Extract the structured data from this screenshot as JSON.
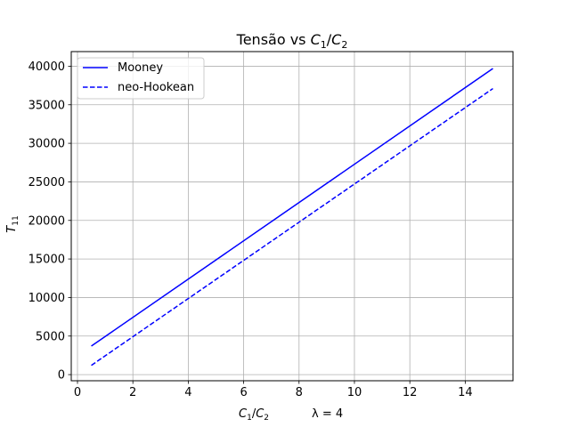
{
  "chart_data": {
    "type": "line",
    "title": {
      "prefix": "Tensão vs ",
      "math": {
        "a": "C",
        "a_sub": "1",
        "slash": "/",
        "b": "C",
        "b_sub": "2"
      }
    },
    "xlabel": {
      "math": {
        "a": "C",
        "a_sub": "1",
        "slash": "/",
        "b": "C",
        "b_sub": "2"
      },
      "suffix": "λ = 4"
    },
    "ylabel": {
      "base": "T",
      "sub": "11"
    },
    "xlim": [
      -0.225,
      15.725
    ],
    "ylim": [
      -795,
      41895
    ],
    "xticks": [
      0,
      2,
      4,
      6,
      8,
      10,
      12,
      14
    ],
    "xtick_labels": [
      "0",
      "2",
      "4",
      "6",
      "8",
      "10",
      "12",
      "14"
    ],
    "yticks": [
      0,
      5000,
      10000,
      15000,
      20000,
      25000,
      30000,
      35000,
      40000
    ],
    "ytick_labels": [
      "0",
      "5000",
      "10000",
      "15000",
      "20000",
      "25000",
      "30000",
      "35000",
      "40000"
    ],
    "grid": true,
    "legend_position": "upper left",
    "series": [
      {
        "name": "Mooney",
        "style": "solid",
        "color": "#0000ff",
        "x": [
          0.5,
          15
        ],
        "y": [
          3700,
          39700
        ]
      },
      {
        "name": "neo-Hookean",
        "style": "dashed",
        "color": "#0000ff",
        "x": [
          0.5,
          15
        ],
        "y": [
          1200,
          37100
        ]
      }
    ]
  }
}
